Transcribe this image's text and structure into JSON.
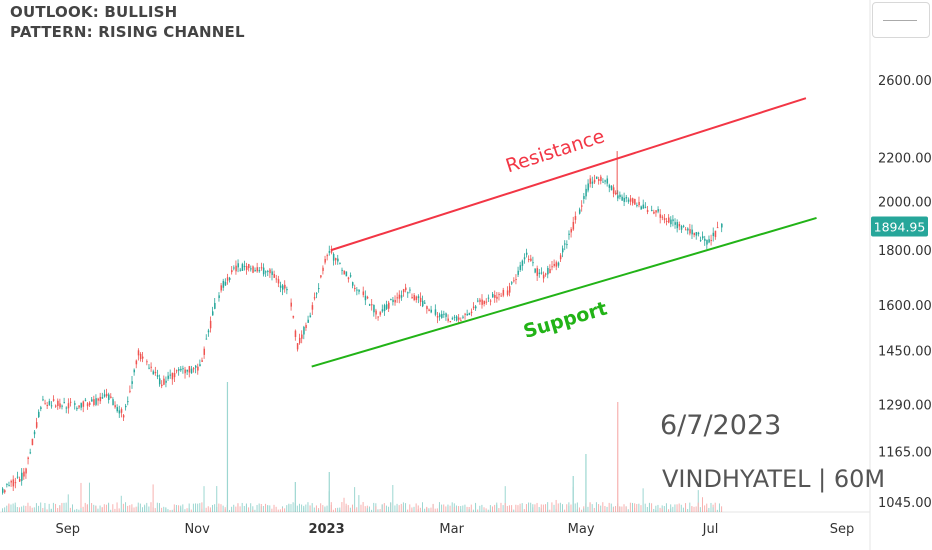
{
  "header": {
    "outlook": "OUTLOOK: BULLISH",
    "pattern": "PATTERN: RISING CHANNEL"
  },
  "annotations": {
    "resistance": "Resistance",
    "support": "Support",
    "date": "6/7/2023",
    "ticker": "VINDHYATEL | 60M"
  },
  "colors": {
    "resistance": "#f23645",
    "support": "#22b317",
    "up_candle": "#26a69a",
    "down_candle": "#ef5350",
    "price_badge": "#26a69a",
    "axis_text": "#333333",
    "annotation_text": "#555555"
  },
  "chart_data": {
    "type": "candlestick",
    "y_scale": "log",
    "y_ticks": [
      "2600.00",
      "2200.00",
      "2000.00",
      "1800.00",
      "1600.00",
      "1450.00",
      "1290.00",
      "1165.00",
      "1045.00"
    ],
    "x_ticks": [
      "Sep",
      "Nov",
      "2023",
      "Mar",
      "May",
      "Jul",
      "Sep"
    ],
    "last_price": "1894.95",
    "series": [
      {
        "date": "2022-08-01",
        "close": 1070
      },
      {
        "date": "2022-08-12",
        "close": 1110
      },
      {
        "date": "2022-08-20",
        "close": 1300
      },
      {
        "date": "2022-09-05",
        "close": 1285
      },
      {
        "date": "2022-09-20",
        "close": 1310
      },
      {
        "date": "2022-09-28",
        "close": 1262
      },
      {
        "date": "2022-10-05",
        "close": 1440
      },
      {
        "date": "2022-10-15",
        "close": 1350
      },
      {
        "date": "2022-10-25",
        "close": 1390
      },
      {
        "date": "2022-11-03",
        "close": 1395
      },
      {
        "date": "2022-11-12",
        "close": 1660
      },
      {
        "date": "2022-11-20",
        "close": 1740
      },
      {
        "date": "2022-12-05",
        "close": 1720
      },
      {
        "date": "2022-12-14",
        "close": 1650
      },
      {
        "date": "2022-12-18",
        "close": 1460
      },
      {
        "date": "2022-12-25",
        "close": 1580
      },
      {
        "date": "2023-01-02",
        "close": 1800
      },
      {
        "date": "2023-01-12",
        "close": 1700
      },
      {
        "date": "2023-01-25",
        "close": 1570
      },
      {
        "date": "2023-02-08",
        "close": 1650
      },
      {
        "date": "2023-02-22",
        "close": 1570
      },
      {
        "date": "2023-03-05",
        "close": 1545
      },
      {
        "date": "2023-03-15",
        "close": 1610
      },
      {
        "date": "2023-03-28",
        "close": 1650
      },
      {
        "date": "2023-04-05",
        "close": 1780
      },
      {
        "date": "2023-04-12",
        "close": 1700
      },
      {
        "date": "2023-04-20",
        "close": 1740
      },
      {
        "date": "2023-04-28",
        "close": 1900
      },
      {
        "date": "2023-05-05",
        "close": 2090
      },
      {
        "date": "2023-05-12",
        "close": 2100
      },
      {
        "date": "2023-05-18",
        "close": 2030
      },
      {
        "date": "2023-05-25",
        "close": 2000
      },
      {
        "date": "2023-06-05",
        "close": 1960
      },
      {
        "date": "2023-06-12",
        "close": 1920
      },
      {
        "date": "2023-06-22",
        "close": 1870
      },
      {
        "date": "2023-07-01",
        "close": 1830
      },
      {
        "date": "2023-07-06",
        "close": 1895
      }
    ],
    "trendlines": [
      {
        "name": "Resistance",
        "from": {
          "date": "2023-01-03",
          "price": 1800
        },
        "to": {
          "date": "2023-08-15",
          "price": 2500
        }
      },
      {
        "name": "Support",
        "from": {
          "date": "2022-12-25",
          "price": 1400
        },
        "to": {
          "date": "2023-08-20",
          "price": 1930
        }
      }
    ]
  }
}
